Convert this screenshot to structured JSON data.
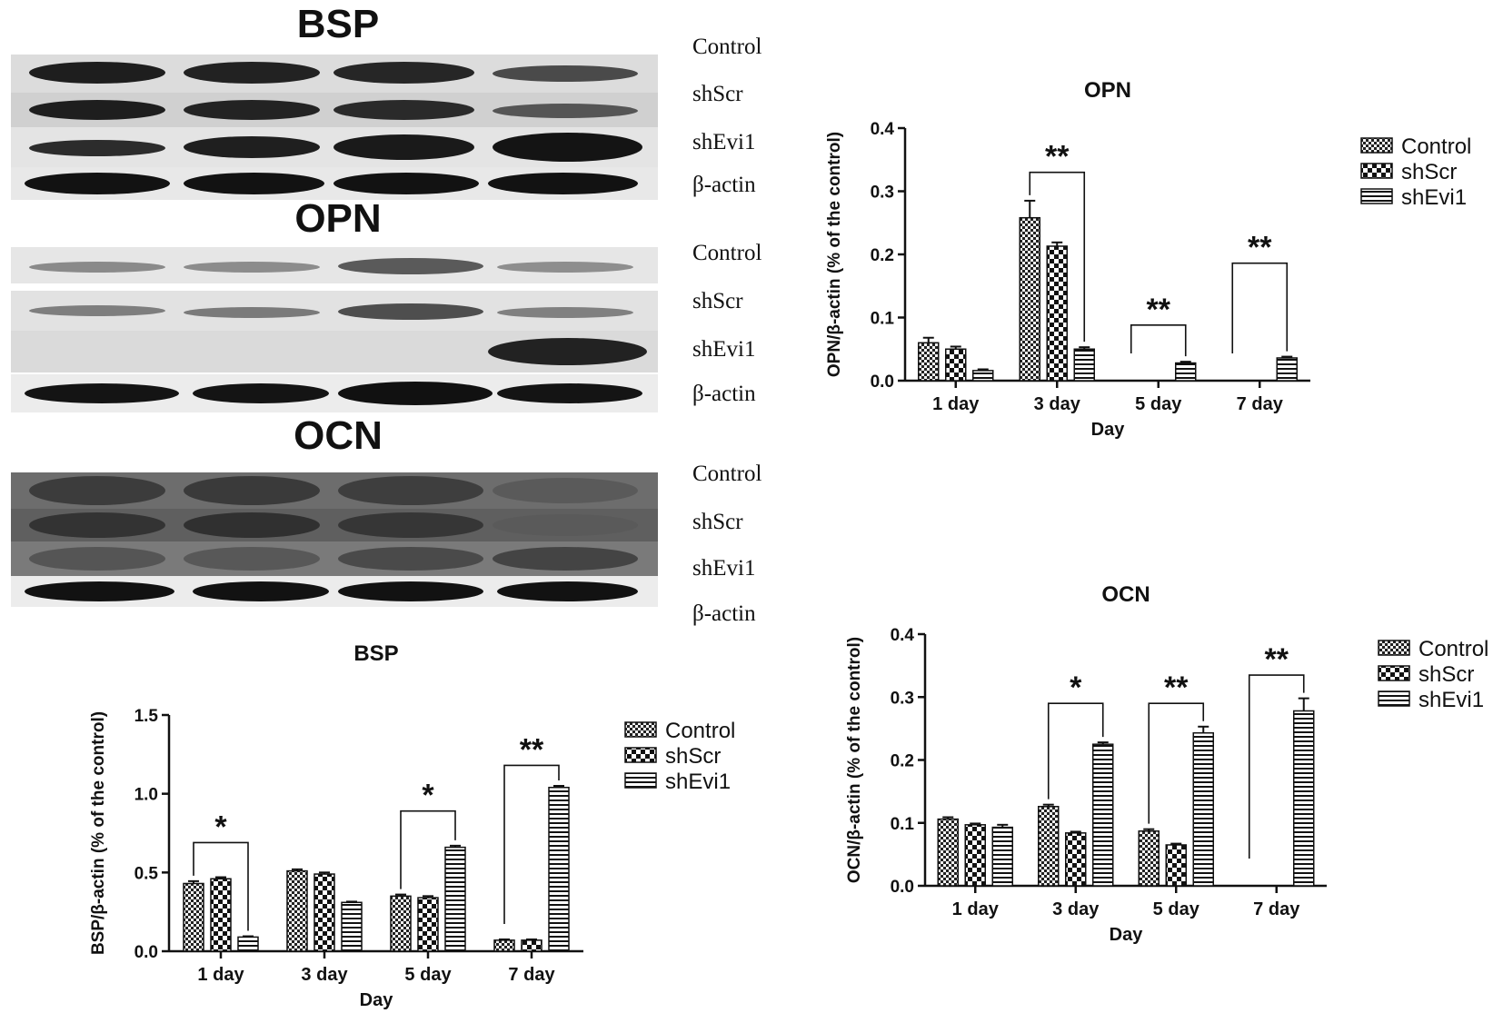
{
  "blots": [
    {
      "id": "bsp",
      "title": "BSP",
      "lanes": [
        "Control",
        "shScr",
        "shEvi1",
        "β-actin"
      ]
    },
    {
      "id": "opn",
      "title": "OPN",
      "lanes": [
        "Control",
        "shScr",
        "shEvi1",
        "β-actin"
      ]
    },
    {
      "id": "ocn",
      "title": "OCN",
      "lanes": [
        "Control",
        "shScr",
        "shEvi1",
        "β-actin"
      ]
    }
  ],
  "colors": {
    "bar_stroke": "#111111",
    "blot_band": "#1a1a1a",
    "background": "#ffffff"
  },
  "chart_data": [
    {
      "id": "opn",
      "type": "bar",
      "title": "OPN",
      "xlabel": "Day",
      "ylabel": "OPN/β-actin  (% of the control)",
      "ylim": [
        0,
        0.4
      ],
      "yticks": [
        "0.0",
        "0.1",
        "0.2",
        "0.3",
        "0.4"
      ],
      "categories": [
        "1 day",
        "3 day",
        "5 day",
        "7 day"
      ],
      "series": [
        {
          "name": "Control",
          "pattern": "checker-fine",
          "values": [
            0.06,
            0.258,
            0,
            0
          ],
          "errors": [
            0.008,
            0.027,
            0,
            0
          ]
        },
        {
          "name": "shScr",
          "pattern": "checker-coarse",
          "values": [
            0.05,
            0.213,
            0,
            0
          ],
          "errors": [
            0.004,
            0.006,
            0,
            0
          ]
        },
        {
          "name": "shEvi1",
          "pattern": "stripes",
          "values": [
            0.016,
            0.05,
            0.028,
            0.036
          ],
          "errors": [
            0.002,
            0.003,
            0.002,
            0.002
          ]
        }
      ],
      "annotations": [
        {
          "label": "**",
          "category_index": 1,
          "from_series": 0,
          "to_series": 2,
          "y": 0.33
        },
        {
          "label": "**",
          "category_index": 2,
          "from_series": 0,
          "to_series": 2,
          "y": 0.088
        },
        {
          "label": "**",
          "category_index": 3,
          "from_series": 0,
          "to_series": 2,
          "y": 0.186
        }
      ],
      "legend_position": "right"
    },
    {
      "id": "bsp",
      "type": "bar",
      "title": "BSP",
      "xlabel": "Day",
      "ylabel": "BSP/β-actin  (% of the control)",
      "ylim": [
        0,
        1.5
      ],
      "yticks": [
        "0.0",
        "0.5",
        "1.0",
        "1.5"
      ],
      "categories": [
        "1 day",
        "3 day",
        "5 day",
        "7 day"
      ],
      "series": [
        {
          "name": "Control",
          "pattern": "checker-fine",
          "values": [
            0.43,
            0.51,
            0.35,
            0.07
          ],
          "errors": [
            0.015,
            0.01,
            0.01,
            0.005
          ]
        },
        {
          "name": "shScr",
          "pattern": "checker-coarse",
          "values": [
            0.46,
            0.49,
            0.34,
            0.07
          ],
          "errors": [
            0.01,
            0.01,
            0.01,
            0.005
          ]
        },
        {
          "name": "shEvi1",
          "pattern": "stripes",
          "values": [
            0.09,
            0.31,
            0.66,
            1.04
          ],
          "errors": [
            0.005,
            0.005,
            0.01,
            0.01
          ]
        }
      ],
      "annotations": [
        {
          "label": "*",
          "category_index": 0,
          "from_series": 0,
          "to_series": 2,
          "y": 0.69
        },
        {
          "label": "*",
          "category_index": 2,
          "from_series": 0,
          "to_series": 2,
          "y": 0.89
        },
        {
          "label": "**",
          "category_index": 3,
          "from_series": 0,
          "to_series": 2,
          "y": 1.18
        }
      ],
      "legend_position": "right"
    },
    {
      "id": "ocn",
      "type": "bar",
      "title": "OCN",
      "xlabel": "Day",
      "ylabel": "OCN/β-actin  (% of the control)",
      "ylim": [
        0,
        0.4
      ],
      "yticks": [
        "0.0",
        "0.1",
        "0.2",
        "0.3",
        "0.4"
      ],
      "categories": [
        "1 day",
        "3 day",
        "5 day",
        "7 day"
      ],
      "series": [
        {
          "name": "Control",
          "pattern": "checker-fine",
          "values": [
            0.106,
            0.126,
            0.087,
            0
          ],
          "errors": [
            0.003,
            0.003,
            0.003,
            0
          ]
        },
        {
          "name": "shScr",
          "pattern": "checker-coarse",
          "values": [
            0.097,
            0.084,
            0.065,
            0
          ],
          "errors": [
            0.002,
            0.002,
            0.002,
            0
          ]
        },
        {
          "name": "shEvi1",
          "pattern": "stripes",
          "values": [
            0.093,
            0.225,
            0.243,
            0.278
          ],
          "errors": [
            0.004,
            0.003,
            0.01,
            0.02
          ]
        }
      ],
      "annotations": [
        {
          "label": "*",
          "category_index": 1,
          "from_series": 0,
          "to_series": 2,
          "y": 0.29
        },
        {
          "label": "**",
          "category_index": 2,
          "from_series": 0,
          "to_series": 2,
          "y": 0.29
        },
        {
          "label": "**",
          "category_index": 3,
          "from_series": 0,
          "to_series": 2,
          "y": 0.335
        }
      ],
      "legend_position": "right"
    }
  ]
}
